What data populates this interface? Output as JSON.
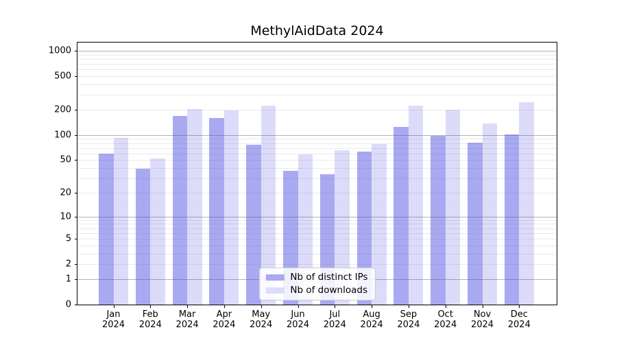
{
  "chart_data": {
    "type": "bar",
    "title": "MethylAidData 2024",
    "categories": [
      "Jan 2024",
      "Feb 2024",
      "Mar 2024",
      "Apr 2024",
      "May 2024",
      "Jun 2024",
      "Jul 2024",
      "Aug 2024",
      "Sep 2024",
      "Oct 2024",
      "Nov 2024",
      "Dec 2024"
    ],
    "series": [
      {
        "name": "Nb of distinct IPs",
        "color": "#a9a9f2",
        "values": [
          60,
          39,
          168,
          161,
          76,
          37,
          34,
          63,
          126,
          97,
          81,
          101
        ]
      },
      {
        "name": "Nb of downloads",
        "color": "#dcdcfa",
        "values": [
          92,
          52,
          205,
          196,
          223,
          59,
          66,
          78,
          225,
          200,
          138,
          245
        ]
      }
    ],
    "xlabel": "",
    "ylabel": "",
    "yscale": "log1p",
    "ylim": [
      0,
      1250
    ],
    "y_ticks": [
      0,
      1,
      2,
      5,
      10,
      20,
      50,
      100,
      200,
      500,
      1000
    ],
    "grid": {
      "enabled": true,
      "major_decades": [
        1,
        10,
        100,
        1000
      ],
      "minor_ticks": true
    },
    "legend": {
      "position": "lower center"
    }
  }
}
